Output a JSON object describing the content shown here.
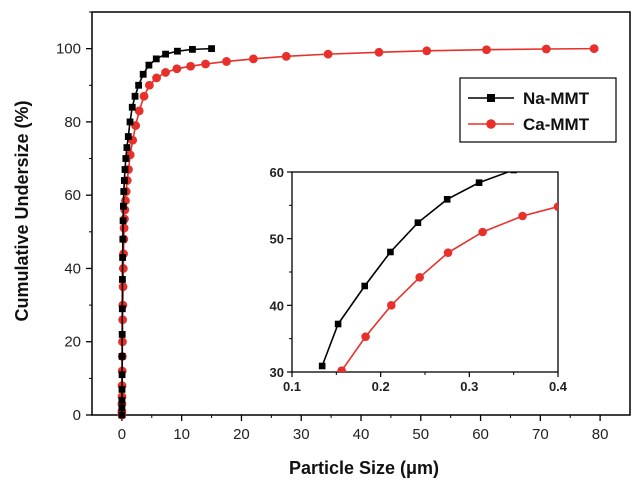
{
  "chart_data": {
    "type": "scatter",
    "xlabel": "Particle Size (μm)",
    "ylabel": "Cumulative Undersize (%)",
    "xlim": [
      -5,
      85
    ],
    "ylim": [
      0,
      110
    ],
    "xticks": [
      0,
      10,
      20,
      30,
      40,
      50,
      60,
      70,
      80
    ],
    "yticks": [
      0,
      20,
      40,
      60,
      80,
      100
    ],
    "legend_position": "upper-right",
    "series": [
      {
        "name": "Na-MMT",
        "color": "#000000",
        "marker": "square",
        "x": [
          0.0,
          0.0,
          0.01,
          0.02,
          0.03,
          0.04,
          0.05,
          0.07,
          0.09,
          0.12,
          0.16,
          0.2,
          0.25,
          0.32,
          0.41,
          0.52,
          0.66,
          0.84,
          1.07,
          1.36,
          1.73,
          2.2,
          2.8,
          3.56,
          4.52,
          5.75,
          7.31,
          9.29,
          11.8,
          15.0
        ],
        "y": [
          0,
          2,
          4,
          7,
          11,
          16,
          22,
          29,
          37,
          43,
          48,
          53,
          57,
          61,
          64,
          67,
          70,
          73,
          76,
          80,
          84,
          87,
          90,
          93,
          95.5,
          97.2,
          98.5,
          99.3,
          99.8,
          100
        ]
      },
      {
        "name": "Ca-MMT",
        "color": "#e8302a",
        "marker": "circle",
        "x": [
          0.0,
          0.0,
          0.01,
          0.02,
          0.03,
          0.05,
          0.07,
          0.1,
          0.13,
          0.16,
          0.2,
          0.24,
          0.28,
          0.32,
          0.37,
          0.43,
          0.5,
          0.6,
          0.72,
          0.9,
          1.1,
          1.4,
          1.8,
          2.3,
          2.9,
          3.7,
          4.6,
          5.8,
          7.3,
          9.2,
          11.5,
          14.0,
          17.5,
          22.0,
          27.5,
          34.5,
          43.0,
          51.0,
          61.0,
          71.0,
          79.0
        ],
        "y": [
          0,
          1,
          3,
          5,
          8,
          12,
          16,
          20,
          26,
          30,
          35,
          40,
          44,
          48,
          51,
          53.5,
          56,
          58.5,
          61,
          64,
          67,
          71,
          75,
          79,
          83,
          87,
          90,
          92,
          93.5,
          94.5,
          95.2,
          95.8,
          96.5,
          97.2,
          97.9,
          98.5,
          99.0,
          99.4,
          99.7,
          99.9,
          100
        ]
      }
    ],
    "inset": {
      "xlim": [
        0.1,
        0.4
      ],
      "ylim": [
        30,
        60
      ],
      "xticks": [
        0.1,
        0.2,
        0.3,
        0.4
      ],
      "yticks": [
        30,
        40,
        50,
        60
      ],
      "series": [
        {
          "name": "Na-MMT",
          "x": [
            0.134,
            0.152,
            0.182,
            0.211,
            0.242,
            0.275,
            0.311,
            0.35
          ],
          "y": [
            30.9,
            37.2,
            42.9,
            48.0,
            52.4,
            55.9,
            58.4,
            60.3
          ]
        },
        {
          "name": "Ca-MMT",
          "x": [
            0.156,
            0.183,
            0.212,
            0.244,
            0.276,
            0.315,
            0.36,
            0.4
          ],
          "y": [
            30.2,
            35.3,
            40.0,
            44.2,
            47.9,
            51.0,
            53.4,
            54.8
          ]
        }
      ]
    }
  }
}
